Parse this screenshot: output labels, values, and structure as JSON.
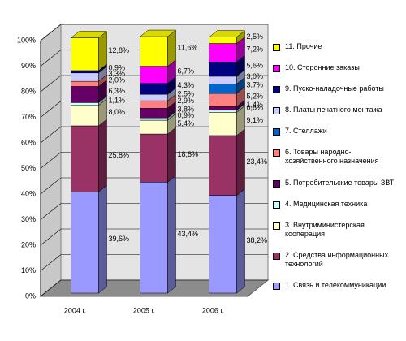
{
  "chart_data": {
    "type": "bar",
    "stacked": true,
    "categories": [
      "2004 г.",
      "2005 г.",
      "2006 г."
    ],
    "ylim": [
      0,
      100
    ],
    "yticks": [
      {
        "value": 0,
        "label": "0%"
      },
      {
        "value": 10,
        "label": "10%"
      },
      {
        "value": 20,
        "label": "20%"
      },
      {
        "value": 30,
        "label": "30%"
      },
      {
        "value": 40,
        "label": "40%"
      },
      {
        "value": 50,
        "label": "50%"
      },
      {
        "value": 60,
        "label": "60%"
      },
      {
        "value": 70,
        "label": "70%"
      },
      {
        "value": 80,
        "label": "80%"
      },
      {
        "value": 90,
        "label": "90%"
      },
      {
        "value": 100,
        "label": "100%"
      }
    ],
    "grid": true,
    "legend": "right",
    "series": [
      {
        "name": "1. Связь и телекоммуникации",
        "color": "#9999ff",
        "values": [
          39.6,
          43.4,
          38.2
        ],
        "value_labels": [
          "39,6%",
          "43,4%",
          "38,2%"
        ]
      },
      {
        "name": "2. Средства информационных технологий",
        "color": "#993366",
        "values": [
          25.8,
          18.8,
          23.4
        ],
        "value_labels": [
          "25,8%",
          "18,8%",
          "23,4%"
        ]
      },
      {
        "name": "3. Внутриминистерская кооперация",
        "color": "#ffffcc",
        "values": [
          8.0,
          5.4,
          9.1
        ],
        "value_labels": [
          "8,0%",
          "5,4%",
          "9,1%"
        ]
      },
      {
        "name": "4. Медицинская техника",
        "color": "#ccffff",
        "values": [
          1.1,
          0.9,
          0.8
        ],
        "value_labels": [
          "1,1%",
          "0,9%",
          "0,8%"
        ]
      },
      {
        "name": "5. Потребительские товары ЗВТ",
        "color": "#660066",
        "values": [
          6.3,
          3.8,
          1.4
        ],
        "value_labels": [
          "6,3%",
          "3,8%",
          "1,4%"
        ]
      },
      {
        "name": "6. Товары народно-хозяйственного назначения",
        "color": "#ff8080",
        "values": [
          2.0,
          2.9,
          5.2
        ],
        "value_labels": [
          "2,0%",
          "2,9%",
          "5,2%"
        ]
      },
      {
        "name": "7. Стеллажи",
        "color": "#0066cc",
        "values": [
          null,
          null,
          3.7
        ],
        "value_labels": [
          null,
          null,
          "3,7%"
        ]
      },
      {
        "name": "8. Платы печатного монтажа",
        "color": "#ccccff",
        "values": [
          3.3,
          2.5,
          3.0
        ],
        "value_labels": [
          "3,3%",
          "2,5%",
          "3,0%"
        ]
      },
      {
        "name": "9. Пуско-наладочные работы",
        "color": "#000080",
        "values": [
          0.9,
          4.3,
          5.6
        ],
        "value_labels": [
          "0,9%",
          "4,3%",
          "5,6%"
        ]
      },
      {
        "name": "10. Сторонние заказы",
        "color": "#ff00ff",
        "values": [
          null,
          6.7,
          7.2
        ],
        "value_labels": [
          null,
          "6,7%",
          "7,2%"
        ]
      },
      {
        "name": "11. Прочие",
        "color": "#ffff00",
        "values": [
          12.8,
          11.6,
          2.5
        ],
        "value_labels": [
          "12,8%",
          "11,6%",
          "2,5%"
        ]
      }
    ]
  }
}
